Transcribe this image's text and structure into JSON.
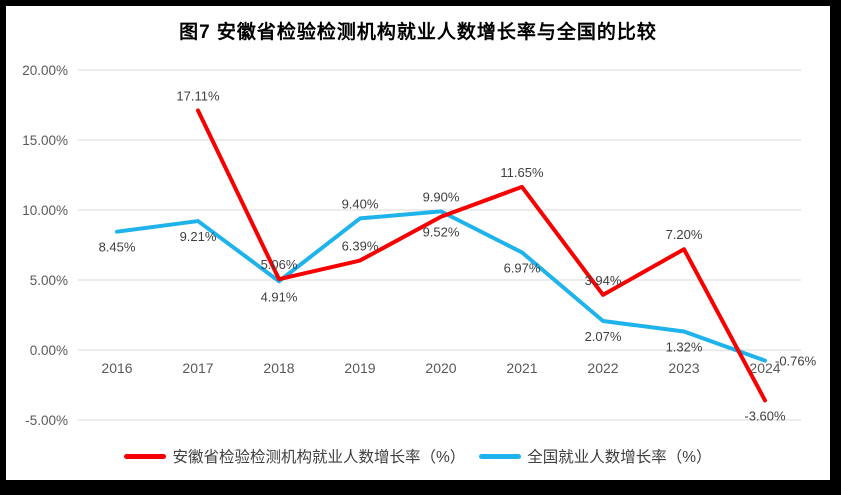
{
  "chart": {
    "title": "图7  安徽省检验检测机构就业人数增长率与全国的比较"
  },
  "chart_data": {
    "type": "line",
    "title": "图7  安徽省检验检测机构就业人数增长率与全国的比较",
    "categories": [
      "2016",
      "2017",
      "2018",
      "2019",
      "2020",
      "2021",
      "2022",
      "2023",
      "2024"
    ],
    "series": [
      {
        "name": "安徽省检验检测机构就业人数增长率（%）",
        "color": "#f60000",
        "values": [
          null,
          17.11,
          5.06,
          6.39,
          9.52,
          11.65,
          3.94,
          7.2,
          -3.6
        ],
        "labels": [
          "",
          "17.11%",
          "5.06%",
          "6.39%",
          "9.52%",
          "11.65%",
          "3.94%",
          "7.20%",
          "-3.60%"
        ],
        "label_positions": [
          "",
          "above",
          "above",
          "above",
          "below",
          "above",
          "above",
          "above",
          "below"
        ]
      },
      {
        "name": "全国就业人数增长率（%）",
        "color": "#1fb3ec",
        "values": [
          8.45,
          9.21,
          4.91,
          9.4,
          9.9,
          6.97,
          2.07,
          1.32,
          -0.76
        ],
        "labels": [
          "8.45%",
          "9.21%",
          "4.91%",
          "9.40%",
          "9.90%",
          "6.97%",
          "2.07%",
          "1.32%",
          "-0.76%"
        ],
        "label_positions": [
          "below",
          "below",
          "below",
          "above",
          "above",
          "below",
          "below",
          "below",
          "right"
        ]
      }
    ],
    "y_axis": {
      "ticks": [
        "20.00%",
        "15.00%",
        "10.00%",
        "5.00%",
        "0.00%",
        "-5.00%"
      ],
      "tick_values": [
        20,
        15,
        10,
        5,
        0,
        -5
      ],
      "min": -5,
      "max": 20,
      "grid": true
    },
    "legend_position": "bottom"
  },
  "colors": {
    "frame": "#000000",
    "background": "#ffffff",
    "grid": "#d9d9d9",
    "axis_text": "#595959",
    "data_label_text": "#3f3f3f",
    "title_text": "#000000"
  }
}
